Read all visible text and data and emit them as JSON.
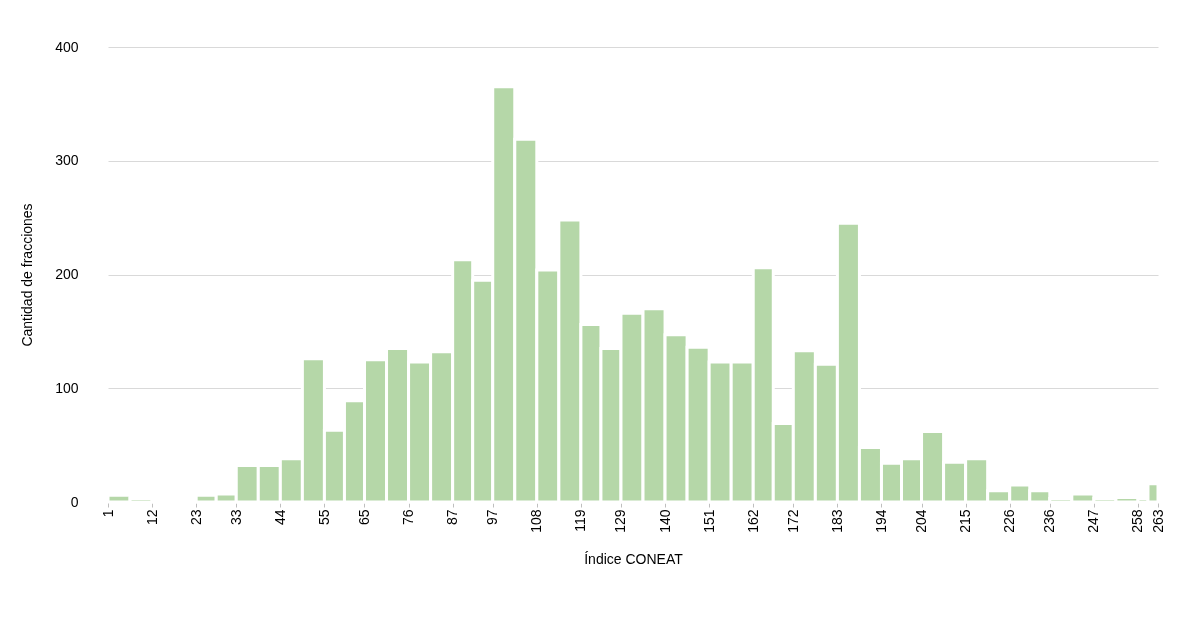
{
  "chart_data": {
    "type": "histogram",
    "xlabel": "Índice CONEAT",
    "ylabel": "Cantidad de fracciones",
    "bins": [
      1,
      6.5,
      12,
      17.5,
      23,
      28,
      33,
      38.5,
      44,
      49.5,
      55,
      60,
      65,
      70.5,
      76,
      81.5,
      87,
      92,
      97,
      102.5,
      108,
      113.5,
      119,
      124,
      129,
      134.5,
      140,
      145.5,
      151,
      156.5,
      162,
      167,
      172,
      177.5,
      183,
      188.5,
      194,
      199,
      204,
      209.5,
      215,
      220.5,
      226,
      231,
      236,
      241.5,
      247,
      252.5,
      258,
      260.5,
      263
    ],
    "values": [
      6,
      3,
      1,
      1,
      6,
      7,
      32,
      32,
      38,
      126,
      63,
      89,
      125,
      135,
      123,
      132,
      213,
      195,
      365,
      319,
      204,
      248,
      156,
      135,
      166,
      170,
      147,
      136,
      123,
      123,
      206,
      69,
      133,
      121,
      245,
      48,
      34,
      38,
      62,
      35,
      38,
      10,
      15,
      10,
      3,
      7,
      3,
      4,
      3,
      16
    ],
    "color": "#b5d7a8",
    "xlim": [
      1,
      263
    ],
    "xticks": [
      1,
      12,
      23,
      33,
      44,
      55,
      65,
      76,
      87,
      97,
      108,
      119,
      129,
      140,
      151,
      162,
      172,
      183,
      194,
      204,
      215,
      226,
      236,
      247,
      258,
      263
    ],
    "ylim": [
      0,
      400
    ],
    "yticks": [
      0,
      100,
      200,
      300,
      400
    ],
    "grid": "y"
  }
}
